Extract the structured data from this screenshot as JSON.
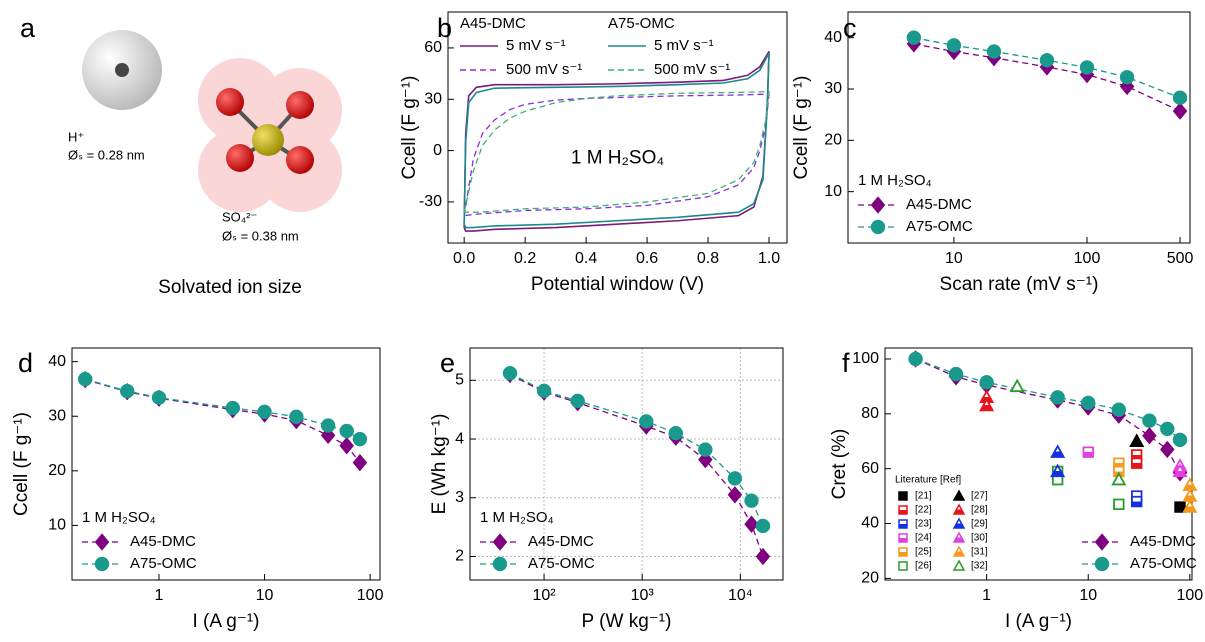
{
  "illustration": {
    "panel_label": "a",
    "h_ion": "H⁺",
    "h_size": "Øₛ = 0.28 nm",
    "so4_ion": "SO₄²⁻",
    "so4_size": "Øₛ = 0.38 nm",
    "caption": "Solvated ion size"
  },
  "chart_data": [
    {
      "type": "line",
      "panel_label": "b",
      "xlabel": "Potential window (V)",
      "ylabel": "Ccell (F g⁻¹)",
      "annotation": "1 M H₂SO₄",
      "xlim": [
        -0.053,
        1.059
      ],
      "ylim": [
        -54,
        81
      ],
      "xticks": [
        {
          "value": 0,
          "label": "0.0"
        },
        0.2,
        0.4,
        0.6,
        0.8,
        {
          "value": 1,
          "label": "1.0"
        }
      ],
      "yticks": [
        -30,
        0,
        30,
        60
      ],
      "legend": "upper left",
      "legend_groups": [
        "A45-DMC",
        "A75-OMC"
      ],
      "series": [
        {
          "name": "5 mV s⁻¹",
          "color": "#7d1a7d",
          "dash": "solid",
          "x": [
            0,
            0.005,
            0.015,
            0.04,
            0.1,
            0.3,
            0.5,
            0.7,
            0.85,
            0.93,
            0.97,
            1.0,
            0.995,
            0.98,
            0.95,
            0.9,
            0.7,
            0.5,
            0.3,
            0.1,
            0.03,
            0.005,
            0
          ],
          "values": [
            -45,
            10,
            32,
            37,
            38.5,
            38.5,
            39,
            40,
            41,
            44,
            49,
            58,
            30,
            -15,
            -33,
            -38,
            -41,
            -43,
            -45,
            -46,
            -47,
            -47,
            -45
          ]
        },
        {
          "name": "500 mV s⁻¹",
          "color": "#8a2be2",
          "dash": "dashed",
          "x": [
            0,
            0.03,
            0.06,
            0.1,
            0.15,
            0.2,
            0.3,
            0.4,
            0.5,
            0.7,
            0.9,
            1.0,
            0.99,
            0.97,
            0.95,
            0.9,
            0.8,
            0.6,
            0.4,
            0.2,
            0.05,
            0
          ],
          "values": [
            -38,
            -5,
            10,
            18,
            24,
            27,
            29.5,
            30.5,
            31,
            32,
            32.5,
            33,
            15,
            0,
            -10,
            -20,
            -27,
            -32,
            -34,
            -35,
            -37,
            -38
          ]
        },
        {
          "name": "5 mV s⁻¹",
          "color": "#1b8a8a",
          "dash": "solid",
          "x": [
            0,
            0.005,
            0.015,
            0.04,
            0.1,
            0.3,
            0.5,
            0.7,
            0.85,
            0.93,
            0.97,
            1.0,
            0.995,
            0.98,
            0.95,
            0.9,
            0.7,
            0.5,
            0.3,
            0.1,
            0.03,
            0.005,
            0
          ],
          "values": [
            -43,
            5,
            28,
            34,
            36.5,
            37,
            37.5,
            38.5,
            39.5,
            42,
            47,
            57,
            28,
            -17,
            -31,
            -36,
            -39,
            -41,
            -43,
            -44,
            -45,
            -45,
            -43
          ]
        },
        {
          "name": "500 mV s⁻¹",
          "color": "#3cb371",
          "dash": "dashed",
          "x": [
            0,
            0.03,
            0.06,
            0.1,
            0.15,
            0.2,
            0.3,
            0.4,
            0.5,
            0.7,
            0.9,
            1.0,
            0.99,
            0.97,
            0.95,
            0.9,
            0.8,
            0.6,
            0.4,
            0.2,
            0.05,
            0
          ],
          "values": [
            -36,
            -12,
            3,
            12,
            19,
            23,
            28,
            30.5,
            32,
            33.5,
            34,
            34.5,
            18,
            3,
            -7,
            -17,
            -25,
            -30,
            -33,
            -34,
            -36,
            -36
          ]
        }
      ]
    },
    {
      "type": "line",
      "panel_label": "c",
      "xlabel": "Scan rate (mV s⁻¹)",
      "ylabel": "Ccell (F g⁻¹)",
      "annotation": "1 M H₂SO₄",
      "xscale": "log",
      "xlim": [
        1.6,
        594
      ],
      "ylim": [
        0,
        45
      ],
      "xticks": [
        10,
        100,
        500
      ],
      "yticks": [
        10,
        20,
        30,
        40
      ],
      "legend": "lower left",
      "x": [
        5,
        10,
        20,
        50,
        100,
        200,
        500
      ],
      "series": [
        {
          "name": "A45-DMC",
          "color": "#800080",
          "dash": "dashed",
          "marker": "diamond",
          "values": [
            38.8,
            37.3,
            36.1,
            34.3,
            32.8,
            30.5,
            25.7
          ]
        },
        {
          "name": "A75-OMC",
          "color": "#1a9a8c",
          "dash": "dashed",
          "marker": "circle",
          "values": [
            40.0,
            38.5,
            37.3,
            35.6,
            34.2,
            32.3,
            28.3
          ]
        }
      ]
    },
    {
      "type": "line",
      "panel_label": "d",
      "xlabel": "I (A g⁻¹)",
      "ylabel": "Ccell (F g⁻¹)",
      "annotation": "1 M H₂SO₄",
      "xscale": "log",
      "xlim": [
        0.15,
        124
      ],
      "ylim": [
        0,
        42.5
      ],
      "xticks": [
        1,
        10,
        100
      ],
      "yticks": [
        10,
        20,
        30,
        40
      ],
      "legend": "lower left",
      "x": [
        0.2,
        0.5,
        1,
        5,
        10,
        20,
        40,
        60,
        80
      ],
      "series": [
        {
          "name": "A45-DMC",
          "color": "#800080",
          "dash": "dashed",
          "marker": "diamond",
          "values": [
            36.7,
            34.5,
            33.3,
            31.2,
            30.4,
            29.2,
            26.5,
            24.6,
            21.5
          ]
        },
        {
          "name": "A75-OMC",
          "color": "#1a9a8c",
          "dash": "dashed",
          "marker": "circle",
          "values": [
            36.8,
            34.6,
            33.4,
            31.5,
            30.8,
            29.9,
            28.3,
            27.3,
            25.8
          ]
        }
      ]
    },
    {
      "type": "line",
      "panel_label": "e",
      "xlabel": "P (W kg⁻¹)",
      "ylabel": "E (Wh kg⁻¹)",
      "annotation": "1 M H₂SO₄",
      "xscale": "log",
      "xlim": [
        17.6,
        27200
      ],
      "ylim": [
        1.6,
        5.55
      ],
      "grid": true,
      "xticks": [
        {
          "value": 100,
          "label": "10²"
        },
        {
          "value": 1000,
          "label": "10³"
        },
        {
          "value": 10000,
          "label": "10⁴"
        }
      ],
      "yticks": [
        2,
        3,
        4,
        5
      ],
      "legend": "lower left",
      "x": [
        45,
        100,
        220,
        1100,
        2200,
        4400,
        8800,
        13000,
        17000
      ],
      "series": [
        {
          "name": "A45-DMC",
          "color": "#800080",
          "dash": "dashed",
          "marker": "diamond",
          "values": [
            5.1,
            4.8,
            4.62,
            4.22,
            4.03,
            3.65,
            3.05,
            2.55,
            2.0
          ]
        },
        {
          "name": "A75-OMC",
          "color": "#1a9a8c",
          "dash": "dashed",
          "marker": "circle",
          "values": [
            5.12,
            4.82,
            4.65,
            4.3,
            4.1,
            3.82,
            3.33,
            2.95,
            2.52
          ]
        }
      ]
    },
    {
      "type": "line",
      "panel_label": "f",
      "xlabel": "I (A g⁻¹)",
      "ylabel": "Cret (%)",
      "legend_title": "Literature [Ref]",
      "xscale": "log",
      "xlim": [
        0.1,
        105
      ],
      "ylim": [
        19.4,
        104
      ],
      "xticks": [
        1,
        10,
        100
      ],
      "yticks": [
        20,
        40,
        60,
        80,
        100
      ],
      "legend": "lower right",
      "x": [
        0.2,
        0.5,
        1,
        5,
        10,
        20,
        40,
        60,
        80
      ],
      "series": [
        {
          "name": "A45-DMC",
          "color": "#800080",
          "dash": "dashed",
          "marker": "diamond",
          "values": [
            100,
            93.5,
            90.5,
            85,
            82.5,
            79.5,
            72,
            67,
            58.5
          ]
        },
        {
          "name": "A75-OMC",
          "color": "#1a9a8c",
          "dash": "dashed",
          "marker": "circle",
          "values": [
            100,
            94.5,
            91.5,
            86,
            84,
            81.5,
            77.5,
            74.5,
            70.5
          ]
        },
        {
          "name": "[21]",
          "color": "#000000",
          "marker": "square",
          "fill": "full",
          "x": [
            80
          ],
          "values": [
            46
          ]
        },
        {
          "name": "[22]",
          "color": "#e8141b",
          "marker": "square",
          "fill": "half",
          "x": [
            30,
            30
          ],
          "values": [
            65,
            62
          ]
        },
        {
          "name": "[23]",
          "color": "#1530e0",
          "marker": "square",
          "fill": "half",
          "x": [
            30,
            30
          ],
          "values": [
            50,
            48
          ]
        },
        {
          "name": "[24]",
          "color": "#e040e0",
          "marker": "square",
          "fill": "half",
          "x": [
            10
          ],
          "values": [
            66
          ]
        },
        {
          "name": "[25]",
          "color": "#f59a20",
          "marker": "square",
          "fill": "half",
          "x": [
            20,
            20
          ],
          "values": [
            62,
            59
          ]
        },
        {
          "name": "[26]",
          "color": "#2a9a2a",
          "marker": "square",
          "fill": "open",
          "x": [
            5,
            5,
            20
          ],
          "values": [
            59,
            56,
            47
          ]
        },
        {
          "name": "[27]",
          "color": "#000000",
          "marker": "triangle",
          "fill": "full",
          "x": [
            30
          ],
          "values": [
            70
          ]
        },
        {
          "name": "[28]",
          "color": "#e8141b",
          "marker": "triangle",
          "fill": "half",
          "x": [
            1,
            1
          ],
          "values": [
            86,
            83
          ]
        },
        {
          "name": "[29]",
          "color": "#1530e0",
          "marker": "triangle",
          "fill": "half",
          "x": [
            5,
            5
          ],
          "values": [
            66,
            59
          ]
        },
        {
          "name": "[30]",
          "color": "#e040e0",
          "marker": "triangle",
          "fill": "half",
          "x": [
            80,
            80
          ],
          "values": [
            61,
            59
          ]
        },
        {
          "name": "[31]",
          "color": "#f59a20",
          "marker": "triangle",
          "fill": "half",
          "x": [
            100,
            100,
            100
          ],
          "values": [
            54,
            50,
            46
          ]
        },
        {
          "name": "[32]",
          "color": "#2a9a2a",
          "marker": "triangle",
          "fill": "open",
          "x": [
            2,
            20
          ],
          "values": [
            90,
            56
          ]
        }
      ]
    }
  ]
}
